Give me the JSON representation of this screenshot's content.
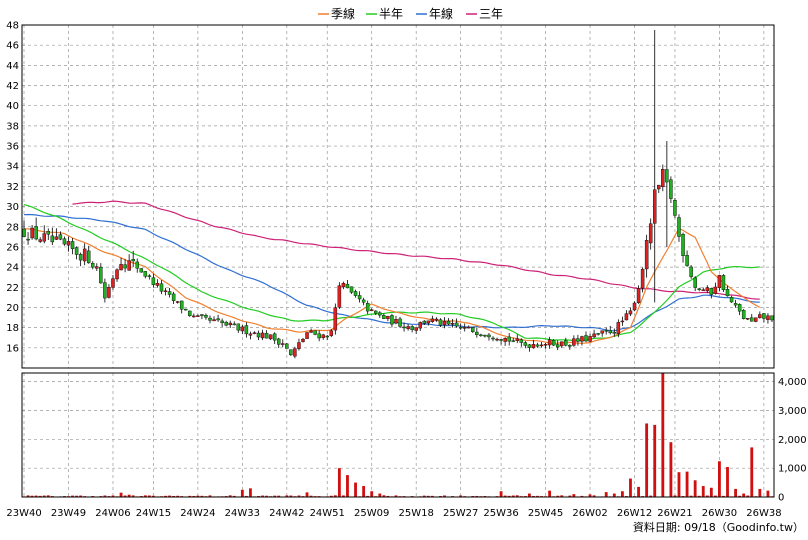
{
  "chart_data": {
    "type": "candlestick",
    "legend": [
      {
        "name": "季線",
        "color": "#f08030"
      },
      {
        "name": "半年",
        "color": "#22cc22"
      },
      {
        "name": "年線",
        "color": "#2f6fd0"
      },
      {
        "name": "三年",
        "color": "#cc2277"
      }
    ],
    "x_tick_labels": [
      "23W40",
      "23W49",
      "24W06",
      "24W15",
      "24W24",
      "24W33",
      "24W42",
      "24W51",
      "25W09",
      "25W18",
      "25W27",
      "25W36",
      "25W45",
      "26W02",
      "26W12",
      "26W21",
      "26W30",
      "26W38"
    ],
    "price_axis": {
      "min": 14,
      "max": 48,
      "ticks": [
        16,
        18,
        20,
        22,
        24,
        26,
        28,
        30,
        32,
        34,
        36,
        38,
        40,
        42,
        44,
        46,
        48
      ]
    },
    "volume_axis": {
      "min": 0,
      "max": 4300,
      "ticks": [
        "0",
        "1,000",
        "2,000",
        "3,000",
        "4,000"
      ]
    },
    "footer": "資料日期: 09/18（Goodinfo.tw）",
    "colors": {
      "up": "#e02020",
      "down": "#20b020",
      "volume": "#d01010",
      "grid": "#999999"
    },
    "anchors": [
      [
        0,
        27.6
      ],
      [
        10,
        26
      ],
      [
        16,
        25
      ],
      [
        18,
        24
      ],
      [
        20,
        21
      ],
      [
        22,
        23
      ],
      [
        24,
        24.8
      ],
      [
        28,
        24
      ],
      [
        32,
        22.5
      ],
      [
        36,
        21
      ],
      [
        42,
        19
      ],
      [
        48,
        18.5
      ],
      [
        54,
        17.8
      ],
      [
        60,
        17.2
      ],
      [
        64,
        16.5
      ],
      [
        66,
        15.2
      ],
      [
        70,
        17.5
      ],
      [
        74,
        17.2
      ],
      [
        76,
        17.5
      ],
      [
        78,
        22.5
      ],
      [
        82,
        21
      ],
      [
        86,
        19.5
      ],
      [
        90,
        18.8
      ],
      [
        96,
        18
      ],
      [
        100,
        18.8
      ],
      [
        104,
        18.3
      ],
      [
        110,
        17.8
      ],
      [
        116,
        17.3
      ],
      [
        120,
        16.8
      ],
      [
        124,
        16.3
      ],
      [
        128,
        16.5
      ],
      [
        134,
        16.4
      ],
      [
        140,
        17
      ],
      [
        146,
        17.8
      ],
      [
        150,
        19.5
      ],
      [
        152,
        22
      ],
      [
        154,
        26
      ],
      [
        156,
        31
      ],
      [
        158,
        33
      ],
      [
        160,
        31
      ],
      [
        162,
        27
      ],
      [
        166,
        22
      ],
      [
        170,
        21.5
      ],
      [
        172,
        23
      ],
      [
        174,
        21
      ],
      [
        178,
        19
      ],
      [
        180,
        18.5
      ],
      [
        182,
        19
      ]
    ],
    "spikes": {
      "156": [
        47.5,
        20.5
      ],
      "159": [
        36.5,
        26
      ]
    },
    "ma_quarter": [
      [
        0,
        27.8
      ],
      [
        10,
        27.3
      ],
      [
        20,
        25.5
      ],
      [
        30,
        24
      ],
      [
        40,
        21
      ],
      [
        50,
        19.2
      ],
      [
        60,
        18
      ],
      [
        68,
        17.6
      ],
      [
        76,
        17.8
      ],
      [
        80,
        19
      ],
      [
        86,
        20.3
      ],
      [
        92,
        19.5
      ],
      [
        100,
        18.8
      ],
      [
        110,
        18.5
      ],
      [
        120,
        17
      ],
      [
        130,
        16.5
      ],
      [
        140,
        16.5
      ],
      [
        146,
        17.2
      ],
      [
        150,
        18
      ],
      [
        154,
        22
      ],
      [
        158,
        25
      ],
      [
        162,
        27.8
      ],
      [
        166,
        27
      ],
      [
        170,
        23.5
      ],
      [
        176,
        21.5
      ],
      [
        182,
        20
      ]
    ],
    "ma_half": [
      [
        0,
        30.2
      ],
      [
        8,
        29
      ],
      [
        16,
        27.5
      ],
      [
        24,
        26
      ],
      [
        34,
        24
      ],
      [
        44,
        21.5
      ],
      [
        56,
        19.8
      ],
      [
        66,
        18.7
      ],
      [
        74,
        18.7
      ],
      [
        80,
        19
      ],
      [
        90,
        19.5
      ],
      [
        100,
        19.5
      ],
      [
        108,
        19.3
      ],
      [
        116,
        18.5
      ],
      [
        124,
        17
      ],
      [
        136,
        16.7
      ],
      [
        144,
        17
      ],
      [
        150,
        17.5
      ],
      [
        156,
        19.5
      ],
      [
        162,
        22
      ],
      [
        168,
        23.5
      ],
      [
        174,
        24
      ],
      [
        182,
        24
      ]
    ],
    "ma_year": [
      [
        0,
        29.2
      ],
      [
        10,
        29
      ],
      [
        20,
        28.6
      ],
      [
        30,
        27.7
      ],
      [
        40,
        25.8
      ],
      [
        50,
        23.8
      ],
      [
        60,
        22.3
      ],
      [
        70,
        20.2
      ],
      [
        78,
        19.3
      ],
      [
        90,
        18.5
      ],
      [
        100,
        18.3
      ],
      [
        110,
        18.1
      ],
      [
        120,
        18
      ],
      [
        130,
        18.2
      ],
      [
        140,
        18
      ],
      [
        146,
        17.7
      ],
      [
        150,
        18
      ],
      [
        156,
        19.5
      ],
      [
        162,
        20.8
      ],
      [
        168,
        21.2
      ],
      [
        174,
        21
      ],
      [
        182,
        20.5
      ]
    ],
    "ma_three": [
      [
        12,
        30.3
      ],
      [
        22,
        30.5
      ],
      [
        30,
        30.3
      ],
      [
        36,
        29.5
      ],
      [
        46,
        28.2
      ],
      [
        58,
        27
      ],
      [
        70,
        26.3
      ],
      [
        80,
        25.8
      ],
      [
        94,
        25.2
      ],
      [
        106,
        24.8
      ],
      [
        118,
        24.2
      ],
      [
        130,
        23.3
      ],
      [
        140,
        22.8
      ],
      [
        150,
        22
      ],
      [
        160,
        21.6
      ],
      [
        172,
        21.4
      ],
      [
        182,
        20.8
      ]
    ],
    "volume_events": {
      "0": 20,
      "24": 150,
      "26": 80,
      "54": 250,
      "56": 300,
      "70": 160,
      "78": 1000,
      "80": 760,
      "82": 500,
      "84": 380,
      "86": 200,
      "88": 120,
      "118": 200,
      "120": 40,
      "125": 120,
      "130": 220,
      "136": 100,
      "140": 90,
      "144": 170,
      "146": 120,
      "148": 200,
      "150": 640,
      "152": 350,
      "154": 2550,
      "156": 2500,
      "158": 4300,
      "160": 1900,
      "162": 860,
      "164": 880,
      "166": 580,
      "168": 380,
      "170": 320,
      "172": 1240,
      "174": 1040,
      "176": 280,
      "178": 120,
      "180": 1720,
      "182": 280,
      "184": 220,
      "186": 330
    }
  }
}
